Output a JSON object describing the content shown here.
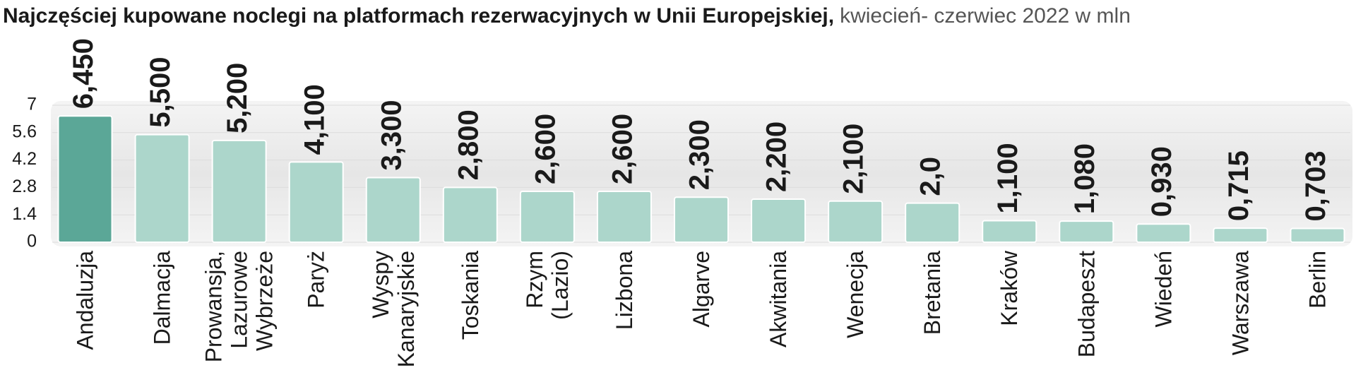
{
  "chart_data": {
    "type": "bar",
    "title": "Najczęściej kupowane noclegi na platformach rezerwacyjnych w Unii Europejskiej,",
    "subtitle": "kwiecień- czerwiec 2022 w mln",
    "categories": [
      "Andaluzja",
      "Dalmacja",
      "Prowansja, Lazurowe Wybrzeże",
      "Paryż",
      "Wyspy Kanaryjskie",
      "Toskania",
      "Rzym (Lazio)",
      "Lizbona",
      "Algarve",
      "Akwitania",
      "Wenecja",
      "Bretania",
      "Kraków",
      "Budapeszt",
      "Wiedeń",
      "Warszawa",
      "Berlin"
    ],
    "values": [
      6.45,
      5.5,
      5.2,
      4.1,
      3.3,
      2.8,
      2.6,
      2.6,
      2.3,
      2.2,
      2.1,
      2.0,
      1.1,
      1.08,
      0.93,
      0.715,
      0.703
    ],
    "value_labels": [
      "6,450",
      "5,500",
      "5,200",
      "4,100",
      "3,300",
      "2,800",
      "2,600",
      "2,600",
      "2,300",
      "2,200",
      "2,100",
      "2,0",
      "1,100",
      "1,080",
      "0,930",
      "0,715",
      "0,703"
    ],
    "colors": [
      "#5ba797",
      "#acd6cb",
      "#acd6cb",
      "#acd6cb",
      "#acd6cb",
      "#acd6cb",
      "#acd6cb",
      "#acd6cb",
      "#acd6cb",
      "#acd6cb",
      "#acd6cb",
      "#acd6cb",
      "#acd6cb",
      "#acd6cb",
      "#acd6cb",
      "#acd6cb",
      "#acd6cb"
    ],
    "ylim": [
      0,
      7
    ],
    "yticks": [
      0,
      1.4,
      2.8,
      4.2,
      5.6,
      7
    ],
    "grid": true
  }
}
